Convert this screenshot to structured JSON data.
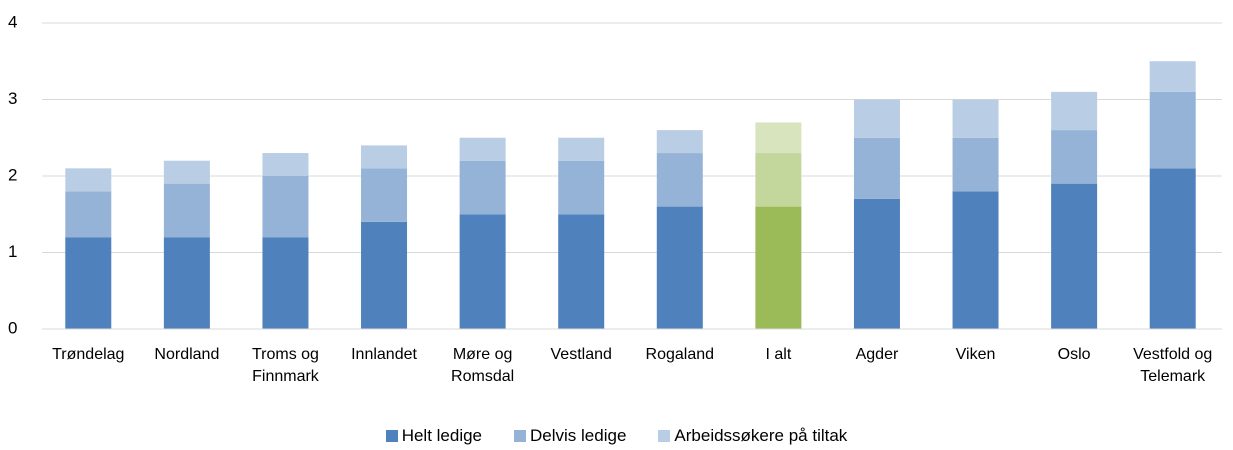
{
  "chart_data": {
    "type": "stacked_bar",
    "categories": [
      "Trøndelag",
      "Nordland",
      "Troms og Finnmark",
      "Innlandet",
      "Møre og Romsdal",
      "Vestland",
      "Rogaland",
      "I alt",
      "Agder",
      "Viken",
      "Oslo",
      "Vestfold og Telemark"
    ],
    "series": [
      {
        "name": "Helt ledige",
        "color": "#4f81bd",
        "values": [
          1.2,
          1.2,
          1.2,
          1.4,
          1.5,
          1.5,
          1.6,
          1.6,
          1.7,
          1.8,
          1.9,
          2.1
        ]
      },
      {
        "name": "Delvis ledige",
        "color": "#95b3d7",
        "values": [
          0.6,
          0.7,
          0.8,
          0.7,
          0.7,
          0.7,
          0.7,
          0.7,
          0.8,
          0.7,
          0.7,
          1.0
        ]
      },
      {
        "name": "Arbeidssøkere på tiltak",
        "color": "#b9cde5",
        "values": [
          0.3,
          0.3,
          0.3,
          0.3,
          0.3,
          0.3,
          0.3,
          0.4,
          0.5,
          0.5,
          0.5,
          0.4
        ]
      }
    ],
    "highlight_category": "I alt",
    "highlight_colors": [
      "#9bbb59",
      "#c3d69b",
      "#d7e4bd"
    ],
    "ylim": [
      0,
      4
    ],
    "yticks": [
      0,
      1,
      2,
      3,
      4
    ],
    "grid": true,
    "legend": "bottom"
  }
}
